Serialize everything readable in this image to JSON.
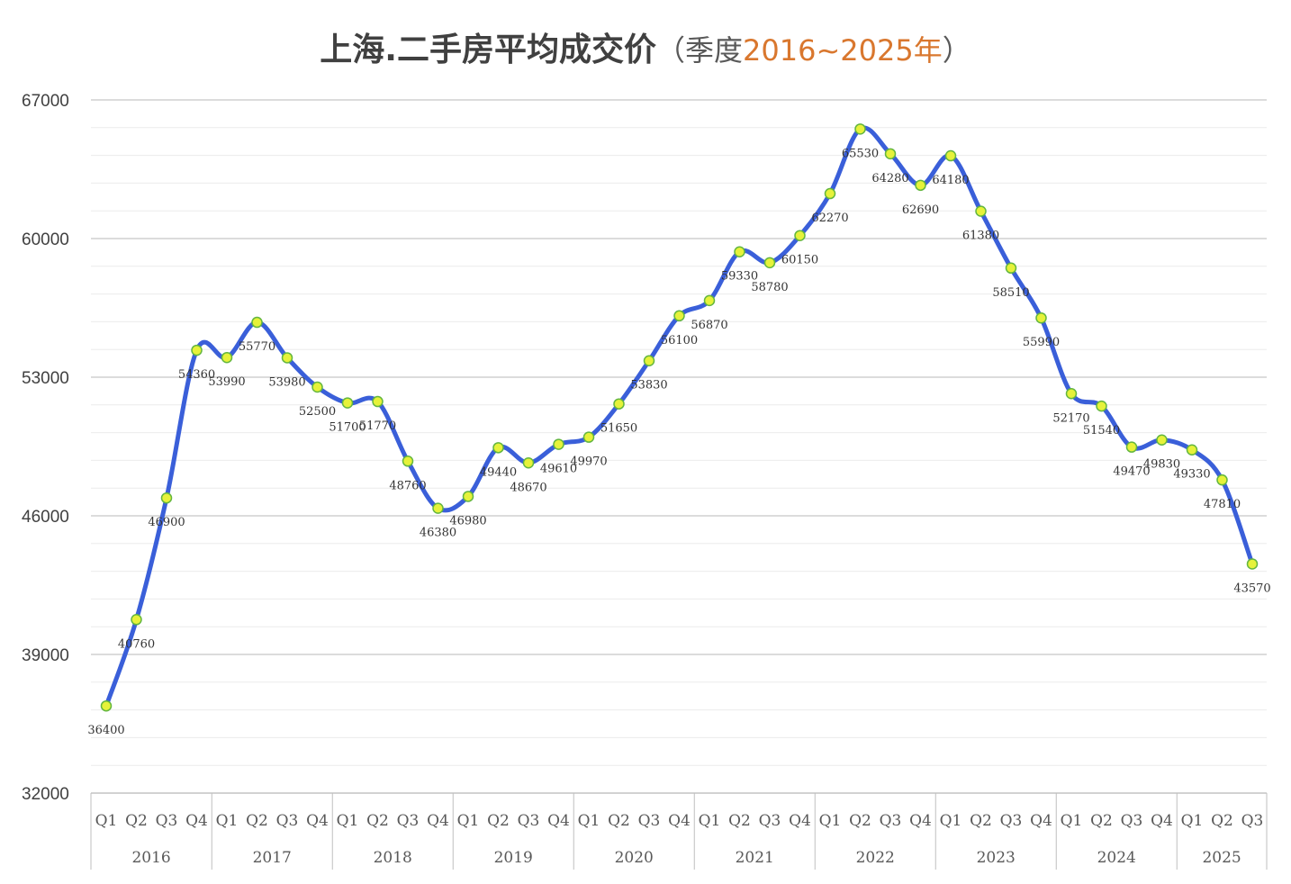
{
  "title": {
    "main": "上海.二手房平均成交价",
    "paren_open": "（",
    "prefix": "季度",
    "years": "2016~2025年",
    "paren_close": "）"
  },
  "colors": {
    "line": "#3a5fd9",
    "marker_fill": "#e6f23a",
    "marker_stroke": "#63b63f",
    "grid": "#d9d9d9",
    "title_accent": "#d9772e"
  },
  "chart_data": {
    "type": "line",
    "title": "上海.二手房平均成交价（季度2016~2025年）",
    "xlabel": "",
    "ylabel": "",
    "ylim": [
      32000,
      67000
    ],
    "yticks": [
      32000,
      39000,
      46000,
      53000,
      60000,
      67000
    ],
    "grid": true,
    "smooth": true,
    "years": [
      "2016",
      "2017",
      "2018",
      "2019",
      "2020",
      "2021",
      "2022",
      "2023",
      "2024",
      "2025"
    ],
    "quarters_per_year": [
      4,
      4,
      4,
      4,
      4,
      4,
      4,
      4,
      4,
      3
    ],
    "categories": [
      "Q1",
      "Q2",
      "Q3",
      "Q4",
      "Q1",
      "Q2",
      "Q3",
      "Q4",
      "Q1",
      "Q2",
      "Q3",
      "Q4",
      "Q1",
      "Q2",
      "Q3",
      "Q4",
      "Q1",
      "Q2",
      "Q3",
      "Q4",
      "Q1",
      "Q2",
      "Q3",
      "Q4",
      "Q1",
      "Q2",
      "Q3",
      "Q4",
      "Q1",
      "Q2",
      "Q3",
      "Q4",
      "Q1",
      "Q2",
      "Q3",
      "Q4",
      "Q1",
      "Q2",
      "Q3"
    ],
    "values": [
      36400,
      40760,
      46900,
      54360,
      53990,
      55770,
      53980,
      52500,
      51700,
      51770,
      48760,
      46380,
      46980,
      49440,
      48670,
      49610,
      49970,
      51650,
      53830,
      56100,
      56870,
      59330,
      58780,
      60150,
      62270,
      65530,
      64280,
      62690,
      64180,
      61380,
      58510,
      55990,
      52170,
      51540,
      49470,
      49830,
      49330,
      47810,
      43570
    ],
    "value_labels": [
      "36400",
      "40760",
      "46900",
      "54360",
      "53990",
      "55770",
      "53980",
      "52500",
      "51700",
      "51770",
      "48760",
      "46380",
      "46980",
      "49440",
      "48670",
      "49610",
      "49970",
      "51650",
      "53830",
      "56100",
      "56870",
      "59330",
      "58780",
      "60150",
      "62270",
      "65530",
      "64280",
      "62690",
      "64180",
      "61380",
      "58510",
      "55990",
      "52170",
      "51540",
      "49470",
      "49830",
      "49330",
      "47810",
      "43570"
    ]
  }
}
